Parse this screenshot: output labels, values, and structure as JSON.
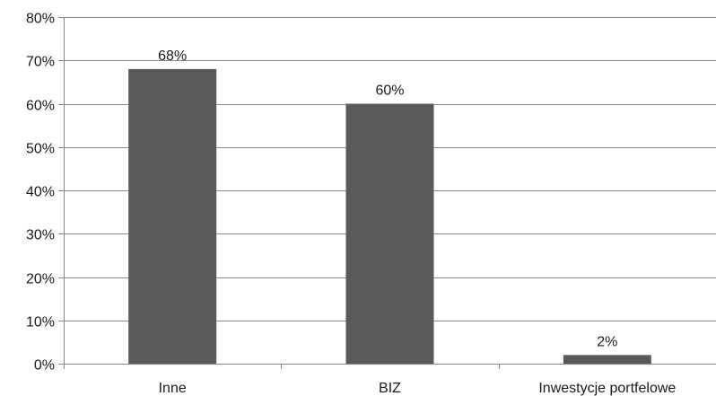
{
  "chart_data": {
    "type": "bar",
    "categories": [
      "Inne",
      "BIZ",
      "Inwestycje portfelowe"
    ],
    "values": [
      68,
      60,
      2
    ],
    "data_labels": [
      "68%",
      "60%",
      "2%"
    ],
    "ylim": [
      0,
      80
    ],
    "yticks": [
      0,
      10,
      20,
      30,
      40,
      50,
      60,
      70,
      80
    ],
    "ytick_labels": [
      "0%",
      "10%",
      "20%",
      "30%",
      "40%",
      "50%",
      "60%",
      "70%",
      "80%"
    ],
    "grid": true,
    "legend": "none",
    "bar_color": "#595959",
    "grid_color": "#878787",
    "text_color": "#1a1a1a"
  }
}
